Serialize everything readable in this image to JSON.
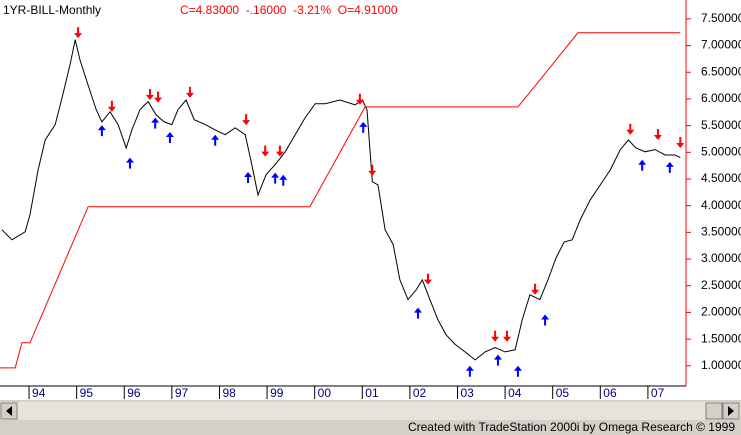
{
  "chart_data": {
    "type": "line",
    "title": "1YR-BILL-Monthly",
    "subtitle": "C=4.83000  -.16000  -3.21%  O=4.91000",
    "xlim": [
      1993.39,
      2007.8
    ],
    "ylim": [
      0.64,
      7.76
    ],
    "grid": false,
    "axis_color": "#ff0000",
    "xticks": [
      {
        "value": 1994,
        "label": "94"
      },
      {
        "value": 1995,
        "label": "95"
      },
      {
        "value": 1996,
        "label": "96"
      },
      {
        "value": 1997,
        "label": "97"
      },
      {
        "value": 1998,
        "label": "98"
      },
      {
        "value": 1999,
        "label": "99"
      },
      {
        "value": 2000,
        "label": "00"
      },
      {
        "value": 2001,
        "label": "01"
      },
      {
        "value": 2002,
        "label": "02"
      },
      {
        "value": 2003,
        "label": "03"
      },
      {
        "value": 2004,
        "label": "04"
      },
      {
        "value": 2005,
        "label": "05"
      },
      {
        "value": 2006,
        "label": "06"
      },
      {
        "value": 2007,
        "label": "07"
      }
    ],
    "yticks": [
      {
        "value": 1.0,
        "label": "1.00000"
      },
      {
        "value": 1.5,
        "label": "1.50000"
      },
      {
        "value": 2.0,
        "label": "2.00000"
      },
      {
        "value": 2.5,
        "label": "2.50000"
      },
      {
        "value": 3.0,
        "label": "3.00000"
      },
      {
        "value": 3.5,
        "label": "3.50000"
      },
      {
        "value": 4.0,
        "label": "4.00000"
      },
      {
        "value": 4.5,
        "label": "4.50000"
      },
      {
        "value": 5.0,
        "label": "5.00000"
      },
      {
        "value": 5.5,
        "label": "5.50000"
      },
      {
        "value": 6.0,
        "label": "6.00000"
      },
      {
        "value": 6.5,
        "label": "6.50000"
      },
      {
        "value": 7.0,
        "label": "7.00000"
      },
      {
        "value": 7.5,
        "label": "7.50000"
      }
    ],
    "series": [
      {
        "color": "#000000",
        "x": [
          1993.43,
          1993.64,
          1993.92,
          1994.02,
          1994.19,
          1994.34,
          1994.55,
          1994.71,
          1994.86,
          1994.97,
          1995.07,
          1995.24,
          1995.41,
          1995.53,
          1995.7,
          1995.87,
          1996.04,
          1996.16,
          1996.33,
          1996.5,
          1996.67,
          1996.84,
          1997.0,
          1997.13,
          1997.3,
          1997.47,
          1997.7,
          1997.91,
          1998.12,
          1998.33,
          1998.54,
          1998.68,
          1998.81,
          1998.98,
          1999.17,
          1999.38,
          1999.59,
          1999.8,
          2000.01,
          2000.22,
          2000.53,
          2000.85,
          2001.0,
          2001.1,
          2001.21,
          2001.33,
          2001.48,
          2001.65,
          2001.79,
          2001.96,
          2002.13,
          2002.26,
          2002.42,
          2002.59,
          2002.76,
          2002.95,
          2003.16,
          2003.37,
          2003.58,
          2003.79,
          2004.0,
          2004.21,
          2004.36,
          2004.52,
          2004.73,
          2004.9,
          2005.07,
          2005.24,
          2005.41,
          2005.58,
          2005.79,
          2006.0,
          2006.21,
          2006.42,
          2006.59,
          2006.75,
          2006.94,
          2007.15,
          2007.36,
          2007.57,
          2007.68
        ],
        "values": [
          3.55,
          3.36,
          3.51,
          3.83,
          4.67,
          5.23,
          5.52,
          6.08,
          6.64,
          7.11,
          6.73,
          6.26,
          5.8,
          5.57,
          5.76,
          5.52,
          5.08,
          5.42,
          5.8,
          5.95,
          5.7,
          5.57,
          5.52,
          5.8,
          5.98,
          5.61,
          5.52,
          5.42,
          5.33,
          5.46,
          5.33,
          4.77,
          4.2,
          4.58,
          4.77,
          5.01,
          5.33,
          5.65,
          5.91,
          5.91,
          5.98,
          5.89,
          5.98,
          5.8,
          4.45,
          4.39,
          3.55,
          3.27,
          2.61,
          2.24,
          2.42,
          2.61,
          2.24,
          1.86,
          1.58,
          1.4,
          1.26,
          1.11,
          1.26,
          1.34,
          1.26,
          1.3,
          1.86,
          2.33,
          2.24,
          2.61,
          3.02,
          3.32,
          3.36,
          3.74,
          4.11,
          4.39,
          4.67,
          5.05,
          5.23,
          5.08,
          5.01,
          5.05,
          4.95,
          4.95,
          4.9
        ]
      },
      {
        "color": "#ff0000",
        "x": [
          1993.39,
          1993.71,
          1993.85,
          1994.02,
          1995.24,
          1999.9,
          2001.06,
          2004.27,
          2004.9,
          2005.53,
          2007.68
        ],
        "values": [
          0.96,
          0.96,
          1.43,
          1.43,
          3.98,
          3.98,
          5.85,
          5.85,
          6.54,
          7.24,
          7.24
        ]
      },
      {
        "color": "#ff0000",
        "marker": "arrow-down",
        "x": [
          1995.03,
          1995.74,
          1996.54,
          1996.71,
          1997.38,
          1998.56,
          1998.96,
          1999.27,
          2000.95,
          2001.21,
          2002.38,
          2003.79,
          2004.04,
          2004.63,
          2006.63,
          2007.21,
          2007.68
        ],
        "values": [
          7.14,
          5.76,
          5.98,
          5.93,
          6.02,
          5.51,
          4.92,
          4.92,
          5.89,
          4.56,
          2.52,
          1.45,
          1.45,
          2.33,
          5.33,
          5.23,
          5.08
        ]
      },
      {
        "color": "#0000ff",
        "marker": "arrow-up",
        "x": [
          1995.53,
          1996.12,
          1996.65,
          1996.96,
          1997.91,
          1998.6,
          1999.17,
          1999.34,
          2001.02,
          2002.17,
          2003.26,
          2003.85,
          2004.27,
          2004.84,
          2006.88,
          2007.46
        ],
        "values": [
          5.51,
          4.9,
          5.65,
          5.38,
          5.33,
          4.63,
          4.62,
          4.58,
          5.57,
          2.09,
          1.0,
          1.21,
          1.0,
          1.96,
          4.86,
          4.82
        ]
      }
    ]
  },
  "footer": "Created with TradeStation 2000i by Omega Research © 1999"
}
